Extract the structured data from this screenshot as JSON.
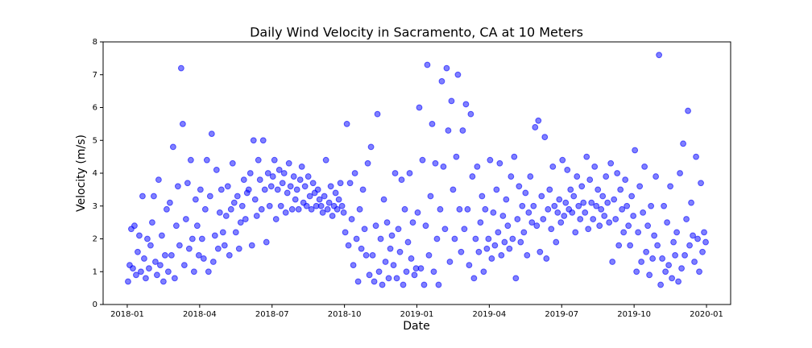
{
  "chart_data": {
    "type": "scatter",
    "title": "Daily Wind Velocity in Sacramento, CA at 10 Meters",
    "xlabel": "Date",
    "ylabel": "Velocity (m/s)",
    "color": "#0000ff",
    "xlim": [
      "2017-12",
      "2020-02"
    ],
    "xticks": [
      "2018-01",
      "2018-04",
      "2018-07",
      "2018-10",
      "2019-01",
      "2019-04",
      "2019-07",
      "2019-10",
      "2020-01"
    ],
    "ylim": [
      0,
      8
    ],
    "yticks": [
      0,
      1,
      2,
      3,
      4,
      5,
      6,
      7,
      8
    ],
    "grid": false,
    "x": [
      "2018-01",
      "2018-01",
      "2018-01",
      "2018-01",
      "2018-01",
      "2018-01",
      "2018-01",
      "2018-01",
      "2018-01",
      "2018-01",
      "2018-01",
      "2018-01",
      "2018-01",
      "2018-01",
      "2018-01",
      "2018-02",
      "2018-02",
      "2018-02",
      "2018-02",
      "2018-02",
      "2018-02",
      "2018-02",
      "2018-02",
      "2018-02",
      "2018-02",
      "2018-02",
      "2018-02",
      "2018-02",
      "2018-02",
      "2018-02",
      "2018-03",
      "2018-03",
      "2018-03",
      "2018-03",
      "2018-03",
      "2018-03",
      "2018-03",
      "2018-03",
      "2018-03",
      "2018-03",
      "2018-03",
      "2018-03",
      "2018-03",
      "2018-03",
      "2018-03",
      "2018-04",
      "2018-04",
      "2018-04",
      "2018-04",
      "2018-04",
      "2018-04",
      "2018-04",
      "2018-04",
      "2018-04",
      "2018-04",
      "2018-04",
      "2018-04",
      "2018-04",
      "2018-04",
      "2018-04",
      "2018-05",
      "2018-05",
      "2018-05",
      "2018-05",
      "2018-05",
      "2018-05",
      "2018-05",
      "2018-05",
      "2018-05",
      "2018-05",
      "2018-05",
      "2018-05",
      "2018-05",
      "2018-05",
      "2018-05",
      "2018-06",
      "2018-06",
      "2018-06",
      "2018-06",
      "2018-06",
      "2018-06",
      "2018-06",
      "2018-06",
      "2018-06",
      "2018-06",
      "2018-06",
      "2018-06",
      "2018-06",
      "2018-06",
      "2018-06",
      "2018-07",
      "2018-07",
      "2018-07",
      "2018-07",
      "2018-07",
      "2018-07",
      "2018-07",
      "2018-07",
      "2018-07",
      "2018-07",
      "2018-07",
      "2018-07",
      "2018-07",
      "2018-07",
      "2018-07",
      "2018-08",
      "2018-08",
      "2018-08",
      "2018-08",
      "2018-08",
      "2018-08",
      "2018-08",
      "2018-08",
      "2018-08",
      "2018-08",
      "2018-08",
      "2018-08",
      "2018-08",
      "2018-08",
      "2018-08",
      "2018-09",
      "2018-09",
      "2018-09",
      "2018-09",
      "2018-09",
      "2018-09",
      "2018-09",
      "2018-09",
      "2018-09",
      "2018-09",
      "2018-09",
      "2018-09",
      "2018-09",
      "2018-09",
      "2018-09",
      "2018-10",
      "2018-10",
      "2018-10",
      "2018-10",
      "2018-10",
      "2018-10",
      "2018-10",
      "2018-10",
      "2018-10",
      "2018-10",
      "2018-10",
      "2018-10",
      "2018-10",
      "2018-10",
      "2018-10",
      "2018-11",
      "2018-11",
      "2018-11",
      "2018-11",
      "2018-11",
      "2018-11",
      "2018-11",
      "2018-11",
      "2018-11",
      "2018-11",
      "2018-11",
      "2018-11",
      "2018-11",
      "2018-11",
      "2018-11",
      "2018-12",
      "2018-12",
      "2018-12",
      "2018-12",
      "2018-12",
      "2018-12",
      "2018-12",
      "2018-12",
      "2018-12",
      "2018-12",
      "2018-12",
      "2018-12",
      "2018-12",
      "2018-12",
      "2018-12",
      "2019-01",
      "2019-01",
      "2019-01",
      "2019-01",
      "2019-01",
      "2019-01",
      "2019-01",
      "2019-01",
      "2019-01",
      "2019-01",
      "2019-01",
      "2019-01",
      "2019-01",
      "2019-01",
      "2019-01",
      "2019-02",
      "2019-02",
      "2019-02",
      "2019-02",
      "2019-02",
      "2019-02",
      "2019-02",
      "2019-02",
      "2019-02",
      "2019-02",
      "2019-02",
      "2019-02",
      "2019-02",
      "2019-02",
      "2019-02",
      "2019-03",
      "2019-03",
      "2019-03",
      "2019-03",
      "2019-03",
      "2019-03",
      "2019-03",
      "2019-03",
      "2019-03",
      "2019-03",
      "2019-03",
      "2019-03",
      "2019-03",
      "2019-03",
      "2019-03",
      "2019-04",
      "2019-04",
      "2019-04",
      "2019-04",
      "2019-04",
      "2019-04",
      "2019-04",
      "2019-04",
      "2019-04",
      "2019-04",
      "2019-04",
      "2019-04",
      "2019-04",
      "2019-04",
      "2019-04",
      "2019-05",
      "2019-05",
      "2019-05",
      "2019-05",
      "2019-05",
      "2019-05",
      "2019-05",
      "2019-05",
      "2019-05",
      "2019-05",
      "2019-05",
      "2019-05",
      "2019-05",
      "2019-05",
      "2019-05",
      "2019-06",
      "2019-06",
      "2019-06",
      "2019-06",
      "2019-06",
      "2019-06",
      "2019-06",
      "2019-06",
      "2019-06",
      "2019-06",
      "2019-06",
      "2019-06",
      "2019-06",
      "2019-06",
      "2019-06",
      "2019-07",
      "2019-07",
      "2019-07",
      "2019-07",
      "2019-07",
      "2019-07",
      "2019-07",
      "2019-07",
      "2019-07",
      "2019-07",
      "2019-07",
      "2019-07",
      "2019-07",
      "2019-07",
      "2019-07",
      "2019-08",
      "2019-08",
      "2019-08",
      "2019-08",
      "2019-08",
      "2019-08",
      "2019-08",
      "2019-08",
      "2019-08",
      "2019-08",
      "2019-08",
      "2019-08",
      "2019-08",
      "2019-08",
      "2019-08",
      "2019-09",
      "2019-09",
      "2019-09",
      "2019-09",
      "2019-09",
      "2019-09",
      "2019-09",
      "2019-09",
      "2019-09",
      "2019-09",
      "2019-09",
      "2019-09",
      "2019-09",
      "2019-09",
      "2019-09",
      "2019-10",
      "2019-10",
      "2019-10",
      "2019-10",
      "2019-10",
      "2019-10",
      "2019-10",
      "2019-10",
      "2019-10",
      "2019-10",
      "2019-10",
      "2019-10",
      "2019-10",
      "2019-10",
      "2019-10",
      "2019-11",
      "2019-11",
      "2019-11",
      "2019-11",
      "2019-11",
      "2019-11",
      "2019-11",
      "2019-11",
      "2019-11",
      "2019-11",
      "2019-11",
      "2019-11",
      "2019-11",
      "2019-11",
      "2019-11",
      "2019-12",
      "2019-12",
      "2019-12",
      "2019-12",
      "2019-12",
      "2019-12",
      "2019-12",
      "2019-12",
      "2019-12",
      "2019-12",
      "2019-12",
      "2019-12",
      "2019-12",
      "2019-12",
      "2019-12"
    ],
    "values": [
      0.7,
      1.2,
      2.3,
      1.1,
      2.4,
      0.9,
      1.6,
      2.1,
      1.0,
      3.3,
      1.4,
      0.8,
      2.0,
      1.1,
      1.8,
      2.5,
      3.3,
      1.3,
      0.9,
      3.8,
      1.2,
      2.1,
      0.7,
      1.5,
      2.9,
      1.0,
      3.1,
      1.5,
      4.8,
      0.8,
      2.4,
      3.6,
      1.8,
      7.2,
      5.5,
      1.2,
      2.6,
      3.7,
      1.7,
      4.4,
      2.0,
      1.0,
      3.2,
      2.4,
      1.5,
      3.5,
      2.0,
      1.4,
      2.9,
      4.4,
      1.0,
      3.3,
      5.2,
      1.3,
      2.1,
      4.1,
      1.7,
      2.8,
      3.5,
      2.2,
      1.8,
      2.7,
      3.6,
      1.5,
      2.9,
      4.3,
      3.1,
      2.2,
      3.3,
      1.7,
      2.5,
      3.0,
      3.8,
      2.6,
      3.4,
      3.5,
      4.0,
      1.8,
      5.0,
      3.2,
      2.7,
      4.4,
      3.8,
      2.9,
      5.0,
      3.5,
      1.9,
      4.0,
      3.0,
      3.6,
      3.9,
      4.4,
      2.6,
      3.5,
      4.1,
      3.0,
      3.7,
      4.0,
      2.8,
      3.4,
      4.3,
      3.6,
      2.9,
      3.9,
      3.2,
      3.5,
      2.9,
      3.8,
      4.2,
      3.1,
      3.6,
      3.0,
      3.9,
      3.3,
      2.9,
      3.7,
      3.4,
      3.0,
      3.5,
      3.2,
      3.0,
      2.8,
      3.3,
      4.4,
      2.9,
      3.1,
      3.6,
      2.7,
      3.0,
      3.4,
      2.9,
      3.2,
      3.7,
      3.0,
      2.8,
      2.2,
      5.5,
      1.8,
      3.7,
      2.6,
      1.2,
      4.0,
      2.0,
      0.7,
      2.9,
      1.7,
      3.5,
      2.3,
      1.5,
      4.3,
      0.9,
      4.8,
      1.5,
      0.7,
      2.4,
      5.8,
      1.0,
      2.0,
      0.6,
      3.2,
      1.3,
      2.5,
      0.8,
      1.7,
      2.1,
      1.2,
      4.0,
      0.8,
      2.3,
      1.6,
      3.8,
      0.6,
      2.9,
      1.0,
      1.9,
      4.0,
      1.4,
      2.5,
      0.9,
      1.1,
      2.8,
      6.0,
      1.1,
      4.4,
      0.6,
      2.4,
      7.3,
      1.5,
      3.3,
      5.5,
      1.0,
      4.3,
      2.0,
      0.6,
      2.9,
      6.8,
      4.2,
      2.3,
      7.2,
      5.3,
      1.3,
      6.2,
      3.5,
      2.0,
      4.5,
      7.0,
      2.9,
      1.6,
      5.3,
      2.3,
      6.1,
      2.9,
      1.2,
      5.8,
      3.9,
      0.8,
      2.0,
      4.2,
      1.6,
      2.5,
      3.3,
      1.0,
      2.9,
      1.7,
      2.0,
      4.4,
      1.4,
      2.8,
      1.8,
      3.5,
      2.2,
      4.3,
      1.5,
      2.7,
      1.9,
      3.2,
      2.4,
      1.7,
      3.9,
      2.0,
      4.5,
      0.8,
      2.6,
      3.6,
      1.9,
      3.0,
      2.2,
      3.4,
      1.5,
      2.8,
      3.9,
      2.5,
      3.0,
      5.4,
      2.4,
      5.6,
      1.6,
      3.3,
      2.6,
      5.1,
      1.4,
      2.9,
      3.5,
      2.3,
      4.2,
      3.0,
      1.9,
      2.8,
      3.2,
      2.5,
      4.4,
      2.7,
      3.1,
      4.1,
      2.9,
      3.5,
      2.8,
      3.3,
      2.2,
      3.9,
      3.0,
      2.6,
      3.6,
      3.1,
      2.8,
      4.5,
      2.3,
      3.8,
      3.1,
      2.6,
      4.2,
      3.0,
      3.5,
      2.4,
      2.9,
      3.3,
      2.7,
      3.9,
      3.1,
      2.5,
      4.3,
      1.3,
      3.2,
      2.6,
      4.0,
      1.8,
      3.5,
      2.9,
      2.2,
      3.8,
      3.0,
      2.4,
      1.8,
      3.3,
      2.7,
      4.7,
      1.0,
      2.2,
      3.6,
      1.3,
      2.8,
      4.2,
      1.6,
      2.4,
      0.9,
      3.0,
      1.4,
      2.1,
      3.9,
      1.8,
      7.6,
      0.6,
      1.4,
      3.0,
      1.0,
      2.5,
      1.2,
      3.6,
      0.8,
      1.9,
      1.5,
      2.2,
      0.7,
      4.0,
      1.1,
      4.9,
      1.5,
      2.6,
      5.9,
      1.8,
      3.1,
      2.1,
      1.3,
      4.5,
      2.0,
      1.0,
      3.7,
      1.6,
      2.2,
      1.9
    ]
  }
}
